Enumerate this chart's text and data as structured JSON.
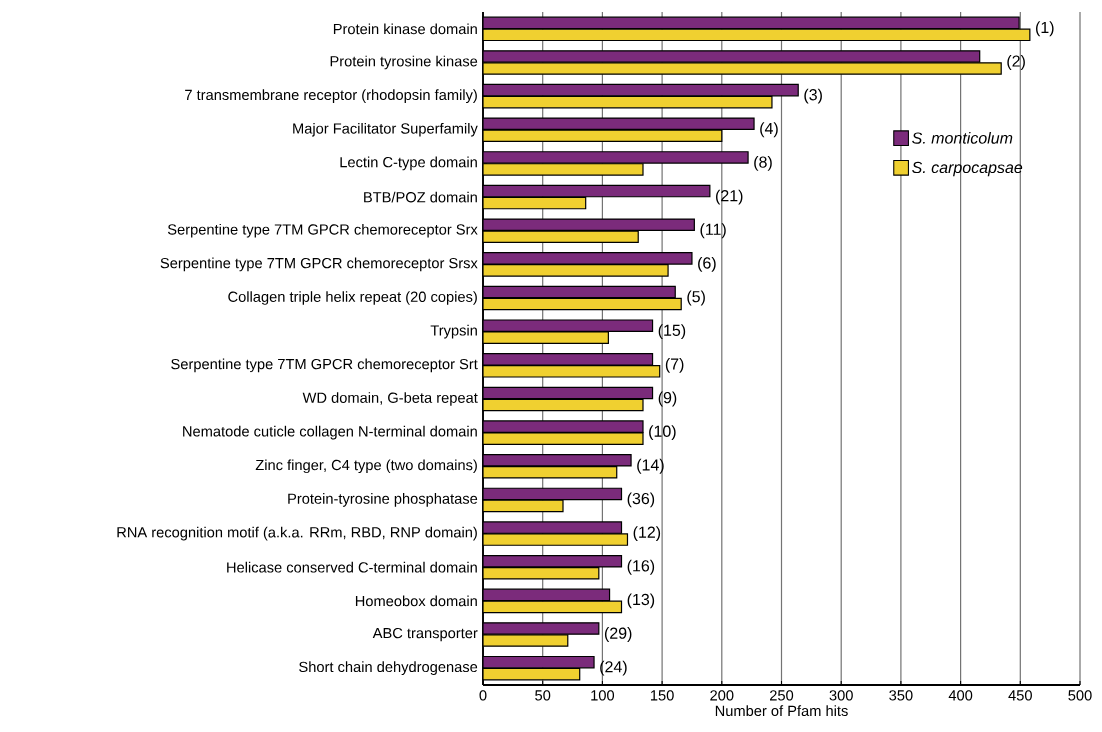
{
  "chart_data": {
    "type": "bar",
    "orientation": "horizontal",
    "xlabel": "Number of Pfam hits",
    "categories": [
      "Protein kinase domain",
      "Protein tyrosine kinase",
      "7 transmembrane receptor (rhodopsin family)",
      "Major Facilitator Superfamily",
      "Lectin C-type domain",
      "BTB/POZ domain",
      "Serpentine type 7TM GPCR chemoreceptor Srx",
      "Serpentine type 7TM GPCR chemoreceptor Srsx",
      "Collagen triple helix repeat (20 copies)",
      "Trypsin",
      "Serpentine type 7TM GPCR chemoreceptor Srt",
      "WD domain, G-beta repeat",
      "Nematode cuticle collagen N-terminal domain",
      "Zinc finger, C4 type (two domains)",
      "Protein-tyrosine phosphatase",
      "RNA recognition motif (a.k.a. RRm, RBD, RNP domain)",
      "Helicase conserved C-terminal domain",
      "Homeobox domain",
      "ABC transporter",
      "Short chain dehydrogenase"
    ],
    "series": [
      {
        "name": "S. monticolum",
        "color": "#7b2b7b",
        "values": [
          449,
          416,
          264,
          227,
          222,
          190,
          177,
          175,
          161,
          142,
          142,
          142,
          134,
          124,
          116,
          116,
          116,
          106,
          97,
          93
        ]
      },
      {
        "name": "S. carpocapsae",
        "color": "#f0d030",
        "values": [
          458,
          434,
          242,
          200,
          134,
          86,
          130,
          155,
          166,
          105,
          148,
          134,
          134,
          112,
          67,
          121,
          97,
          116,
          71,
          81
        ]
      }
    ],
    "xlim": [
      0,
      500
    ],
    "xticks": [
      0,
      50,
      100,
      150,
      200,
      250,
      300,
      350,
      400,
      450,
      500
    ],
    "grid": "x",
    "legend": "top right",
    "annotations": [
      "(1)",
      "(2)",
      "(3)",
      "(4)",
      "(8)",
      "(21)",
      "(11)",
      "(6)",
      "(5)",
      "(15)",
      "(7)",
      "(9)",
      "(10)",
      "(14)",
      "(36)",
      "(12)",
      "(16)",
      "(13)",
      "(29)",
      "(24)"
    ]
  }
}
